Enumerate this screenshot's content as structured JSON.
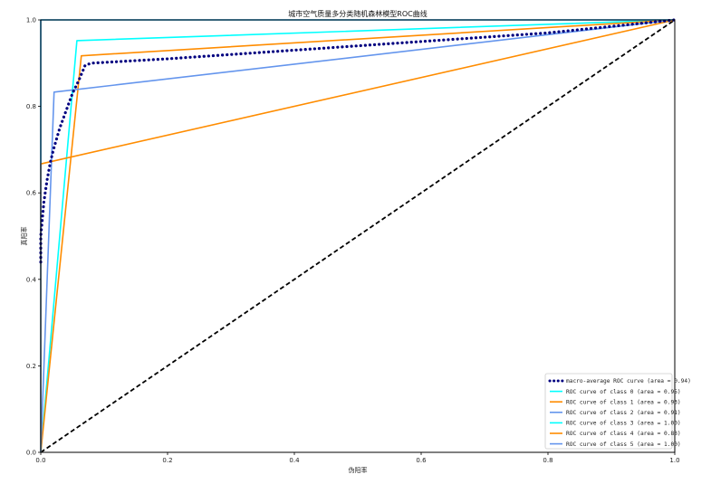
{
  "chart_data": {
    "type": "line",
    "title": "城市空气质量多分类随机森林模型ROC曲线",
    "xlabel": "伪阳率",
    "ylabel": "真阳率",
    "xlim": [
      0,
      1
    ],
    "ylim": [
      0,
      1
    ],
    "xticks": [
      "0.0",
      "0.2",
      "0.4",
      "0.6",
      "0.8",
      "1.0"
    ],
    "yticks": [
      "0.0",
      "0.2",
      "0.4",
      "0.6",
      "0.8",
      "1.0"
    ],
    "grid": false,
    "legend_position": "lower-right",
    "series": [
      {
        "name": "macro-average ROC curve (area = 0.94)",
        "color": "#000080",
        "style": "dotted",
        "x": [
          0.0,
          0.0,
          0.005,
          0.01,
          0.015,
          0.02,
          0.03,
          0.04,
          0.05,
          0.06,
          0.07,
          0.08,
          0.2,
          0.4,
          0.6,
          0.8,
          1.0
        ],
        "y": [
          0.44,
          0.5,
          0.58,
          0.63,
          0.67,
          0.7,
          0.75,
          0.79,
          0.83,
          0.86,
          0.895,
          0.9,
          0.91,
          0.93,
          0.95,
          0.97,
          1.0
        ]
      },
      {
        "name": "ROC curve of class 0 (area = 0.95)",
        "color": "#00ffff",
        "style": "solid",
        "x": [
          0.0,
          0.057,
          1.0
        ],
        "y": [
          0.0,
          0.952,
          1.0
        ]
      },
      {
        "name": "ROC curve of class 1 (area = 0.93)",
        "color": "#ff8c00",
        "style": "solid",
        "x": [
          0.0,
          0.064,
          1.0
        ],
        "y": [
          0.0,
          0.917,
          1.0
        ]
      },
      {
        "name": "ROC curve of class 2 (area = 0.91)",
        "color": "#6495ed",
        "style": "solid",
        "x": [
          0.0,
          0.021,
          1.0
        ],
        "y": [
          0.0,
          0.833,
          1.0
        ]
      },
      {
        "name": "ROC curve of class 3 (area = 1.00)",
        "color": "#00ffff",
        "style": "solid",
        "x": [
          0.0,
          0.0,
          1.0
        ],
        "y": [
          0.0,
          1.0,
          1.0
        ]
      },
      {
        "name": "ROC curve of class 4 (area = 0.83)",
        "color": "#ff8c00",
        "style": "solid",
        "x": [
          0.0,
          0.0,
          1.0
        ],
        "y": [
          0.0,
          0.667,
          1.0
        ]
      },
      {
        "name": "ROC curve of class 5 (area = 1.00)",
        "color": "#6495ed",
        "style": "solid",
        "x": [
          0.0,
          0.0,
          1.0
        ],
        "y": [
          0.0,
          1.0,
          1.0
        ]
      }
    ],
    "diagonal": {
      "x": [
        0,
        1
      ],
      "y": [
        0,
        1
      ],
      "color": "#000000",
      "style": "dashed"
    },
    "frame_color": "#000000"
  }
}
